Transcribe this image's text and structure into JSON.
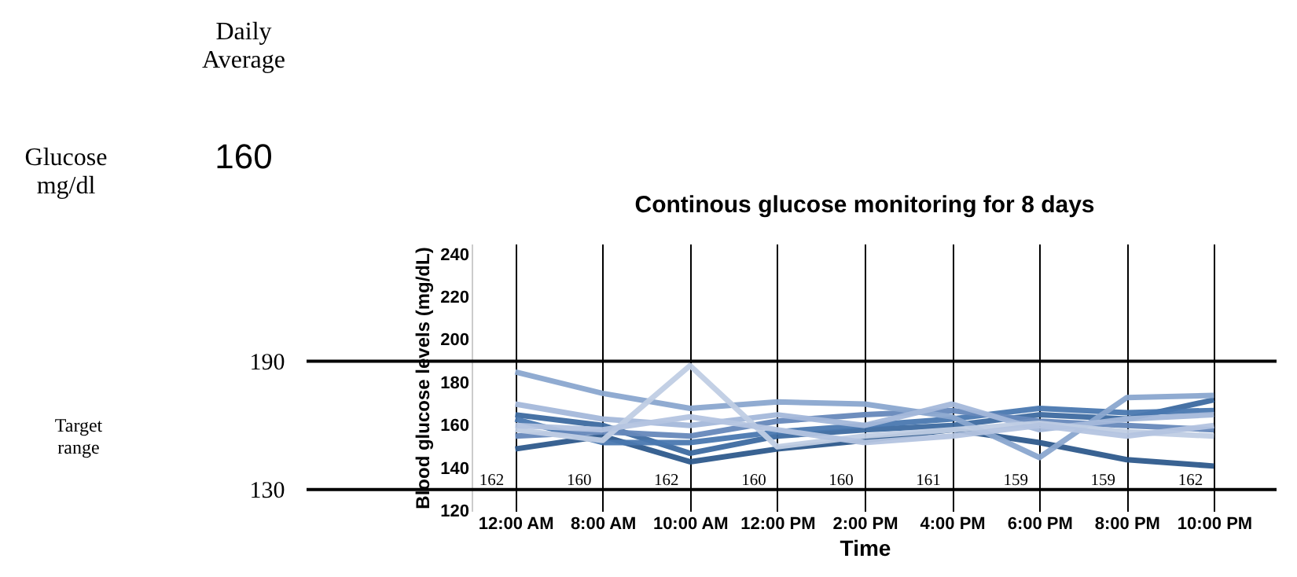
{
  "chart_data": {
    "type": "line",
    "title": "Continous glucose monitoring for 8 days",
    "xlabel": "Time",
    "ylabel": "Blood glucose levels (mg/dL)",
    "categories": [
      "12:00 AM",
      "8:00 AM",
      "10:00 AM",
      "12:00 PM",
      "2:00 PM",
      "4:00 PM",
      "6:00 PM",
      "8:00 PM",
      "10:00 PM"
    ],
    "series": [
      {
        "color": "#2e5a8c",
        "values": [
          149,
          155,
          143,
          149,
          153,
          158,
          152,
          144,
          141
        ]
      },
      {
        "color": "#3d6aa0",
        "values": [
          165,
          160,
          147,
          155,
          158,
          160,
          165,
          163,
          172
        ]
      },
      {
        "color": "#4a78b0",
        "values": [
          163,
          152,
          152,
          157,
          160,
          163,
          168,
          166,
          167
        ]
      },
      {
        "color": "#6688bb",
        "values": [
          155,
          157,
          155,
          162,
          165,
          167,
          162,
          160,
          158
        ]
      },
      {
        "color": "#8aa6cf",
        "values": [
          185,
          175,
          168,
          171,
          170,
          164,
          145,
          173,
          174
        ]
      },
      {
        "color": "#a4b8da",
        "values": [
          170,
          163,
          160,
          165,
          160,
          170,
          158,
          163,
          165
        ]
      },
      {
        "color": "#c0cde4",
        "values": [
          158,
          153,
          188,
          150,
          155,
          158,
          161,
          157,
          155
        ]
      },
      {
        "color": "#b4c4e0",
        "values": [
          160,
          158,
          164,
          158,
          152,
          155,
          160,
          155,
          160
        ]
      }
    ],
    "ylim": [
      120,
      245
    ],
    "yticks": [
      120,
      140,
      160,
      180,
      200,
      220,
      240
    ],
    "grid": "x",
    "line_style": "solid",
    "ref_lines": [
      {
        "axis": "y",
        "value": 190,
        "label": "190",
        "color": "#000000"
      },
      {
        "axis": "y",
        "value": 130,
        "label": "130",
        "color": "#000000"
      }
    ],
    "annotations": [
      "Daily Average",
      "Glucose mg/dl",
      "160",
      "Target range",
      {
        "text": "162",
        "x": "12:00 AM",
        "y": 133
      },
      {
        "text": "160",
        "x": "8:00 AM",
        "y": 133
      },
      {
        "text": "162",
        "x": "10:00 AM",
        "y": 133
      },
      {
        "text": "160",
        "x": "12:00 PM",
        "y": 133
      },
      {
        "text": "160",
        "x": "2:00 PM",
        "y": 133
      },
      {
        "text": "161",
        "x": "4:00 PM",
        "y": 133
      },
      {
        "text": "159",
        "x": "6:00 PM",
        "y": 133
      },
      {
        "text": "159",
        "x": "8:00 PM",
        "y": 133
      },
      {
        "text": "162",
        "x": "10:00 PM",
        "y": 133
      }
    ]
  }
}
